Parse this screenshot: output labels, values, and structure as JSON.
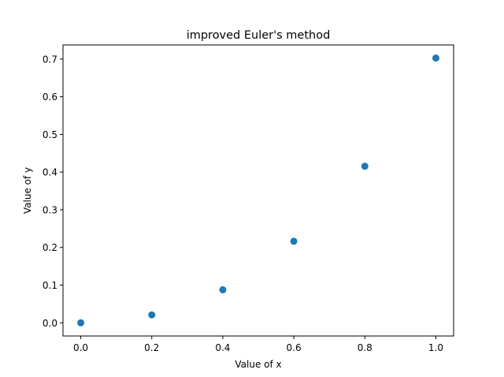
{
  "chart_data": {
    "type": "scatter",
    "title": "improved Euler's method",
    "xlabel": "Value of x",
    "ylabel": "Value of y",
    "x": [
      0.0,
      0.2,
      0.4,
      0.6,
      0.8,
      1.0
    ],
    "y": [
      0.0,
      0.021,
      0.0877,
      0.2164,
      0.4155,
      0.7027
    ],
    "xlim": [
      -0.05,
      1.05
    ],
    "ylim": [
      -0.035,
      0.7375
    ],
    "xticks": [
      0.0,
      0.2,
      0.4,
      0.6,
      0.8,
      1.0
    ],
    "xtick_labels": [
      "0.0",
      "0.2",
      "0.4",
      "0.6",
      "0.8",
      "1.0"
    ],
    "yticks": [
      0.0,
      0.1,
      0.2,
      0.3,
      0.4,
      0.5,
      0.6,
      0.7
    ],
    "ytick_labels": [
      "0.0",
      "0.1",
      "0.2",
      "0.3",
      "0.4",
      "0.5",
      "0.6",
      "0.7"
    ],
    "grid": false,
    "marker_color": "#1f77b4"
  }
}
